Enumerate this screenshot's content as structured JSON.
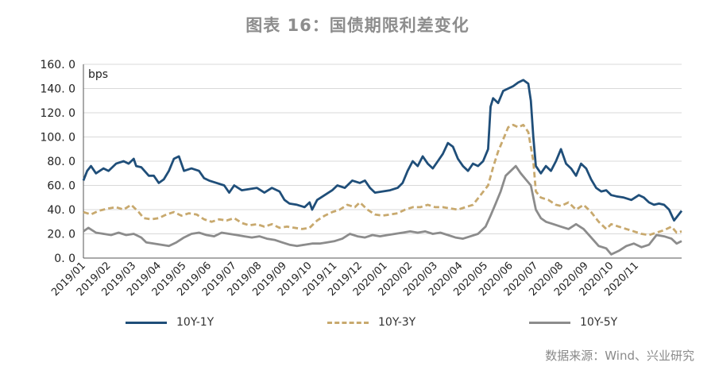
{
  "title": "图表 16：国债期限利差变化",
  "source": "数据来源：Wind、兴业研究",
  "colors": {
    "s1": "#1f4e79",
    "s2": "#c8a96e",
    "s3": "#8c8c8c"
  },
  "chart_data": {
    "type": "line",
    "unit_label": "bps",
    "ylim": [
      0,
      160
    ],
    "yticks": [
      "160. 0",
      "140. 0",
      "120. 0",
      "100. 0",
      "80. 0",
      "60. 0",
      "40. 0",
      "20. 0",
      "0. 0"
    ],
    "xtick_labels": [
      "2019/01",
      "2019/02",
      "2019/03",
      "2019/04",
      "2019/05",
      "2019/06",
      "2019/07",
      "2019/08",
      "2019/09",
      "2019/10",
      "2019/11",
      "2019/12",
      "2020/01",
      "2020/02",
      "2020/03",
      "2020/04",
      "2020/05",
      "2020/06",
      "2020/07",
      "2020/08",
      "2020/09",
      "2020/10",
      "2020/11"
    ],
    "x_end_month": 23.8,
    "grid": true,
    "legend": "bottom",
    "series": [
      {
        "name": "10Y-1Y",
        "style": "solid",
        "points": [
          [
            0,
            64
          ],
          [
            0.15,
            72
          ],
          [
            0.3,
            76
          ],
          [
            0.5,
            70
          ],
          [
            0.8,
            74
          ],
          [
            1,
            72
          ],
          [
            1.3,
            78
          ],
          [
            1.6,
            80
          ],
          [
            1.8,
            78
          ],
          [
            2,
            82
          ],
          [
            2.1,
            76
          ],
          [
            2.3,
            75
          ],
          [
            2.6,
            68
          ],
          [
            2.8,
            68
          ],
          [
            3,
            62
          ],
          [
            3.2,
            65
          ],
          [
            3.4,
            72
          ],
          [
            3.6,
            82
          ],
          [
            3.8,
            84
          ],
          [
            4,
            72
          ],
          [
            4.3,
            74
          ],
          [
            4.6,
            72
          ],
          [
            4.8,
            66
          ],
          [
            5,
            64
          ],
          [
            5.3,
            62
          ],
          [
            5.6,
            60
          ],
          [
            5.8,
            54
          ],
          [
            6,
            60
          ],
          [
            6.3,
            56
          ],
          [
            6.6,
            57
          ],
          [
            6.9,
            58
          ],
          [
            7.2,
            54
          ],
          [
            7.5,
            58
          ],
          [
            7.8,
            55
          ],
          [
            8,
            48
          ],
          [
            8.2,
            45
          ],
          [
            8.5,
            44
          ],
          [
            8.8,
            42
          ],
          [
            9,
            46
          ],
          [
            9.1,
            40
          ],
          [
            9.3,
            48
          ],
          [
            9.6,
            52
          ],
          [
            9.9,
            56
          ],
          [
            10.1,
            60
          ],
          [
            10.4,
            58
          ],
          [
            10.7,
            64
          ],
          [
            11,
            62
          ],
          [
            11.2,
            64
          ],
          [
            11.4,
            58
          ],
          [
            11.6,
            54
          ],
          [
            11.9,
            55
          ],
          [
            12.2,
            56
          ],
          [
            12.5,
            58
          ],
          [
            12.7,
            62
          ],
          [
            12.9,
            72
          ],
          [
            13.1,
            80
          ],
          [
            13.3,
            76
          ],
          [
            13.5,
            84
          ],
          [
            13.7,
            78
          ],
          [
            13.9,
            74
          ],
          [
            14.1,
            80
          ],
          [
            14.3,
            86
          ],
          [
            14.5,
            95
          ],
          [
            14.7,
            92
          ],
          [
            14.9,
            82
          ],
          [
            15.1,
            76
          ],
          [
            15.3,
            72
          ],
          [
            15.5,
            78
          ],
          [
            15.7,
            76
          ],
          [
            15.9,
            80
          ],
          [
            16.1,
            90
          ],
          [
            16.2,
            125
          ],
          [
            16.3,
            132
          ],
          [
            16.5,
            128
          ],
          [
            16.7,
            138
          ],
          [
            16.9,
            140
          ],
          [
            17.1,
            142
          ],
          [
            17.3,
            145
          ],
          [
            17.5,
            147
          ],
          [
            17.7,
            144
          ],
          [
            17.8,
            130
          ],
          [
            17.9,
            100
          ],
          [
            18,
            76
          ],
          [
            18.2,
            70
          ],
          [
            18.4,
            76
          ],
          [
            18.6,
            72
          ],
          [
            18.8,
            80
          ],
          [
            19,
            90
          ],
          [
            19.2,
            78
          ],
          [
            19.4,
            74
          ],
          [
            19.6,
            68
          ],
          [
            19.8,
            78
          ],
          [
            20,
            74
          ],
          [
            20.2,
            65
          ],
          [
            20.4,
            58
          ],
          [
            20.6,
            55
          ],
          [
            20.8,
            56
          ],
          [
            21,
            52
          ],
          [
            21.2,
            51
          ],
          [
            21.5,
            50
          ],
          [
            21.8,
            48
          ],
          [
            22.1,
            52
          ],
          [
            22.3,
            50
          ],
          [
            22.5,
            46
          ],
          [
            22.7,
            44
          ],
          [
            22.9,
            45
          ],
          [
            23.1,
            44
          ],
          [
            23.3,
            40
          ],
          [
            23.5,
            31
          ],
          [
            23.8,
            39
          ]
        ]
      },
      {
        "name": "10Y-3Y",
        "style": "dashed",
        "points": [
          [
            0,
            38
          ],
          [
            0.3,
            36
          ],
          [
            0.6,
            39
          ],
          [
            1,
            41
          ],
          [
            1.3,
            42
          ],
          [
            1.6,
            40
          ],
          [
            1.9,
            44
          ],
          [
            2.2,
            38
          ],
          [
            2.4,
            33
          ],
          [
            2.7,
            32
          ],
          [
            3,
            33
          ],
          [
            3.3,
            36
          ],
          [
            3.6,
            38
          ],
          [
            3.9,
            35
          ],
          [
            4.2,
            37
          ],
          [
            4.5,
            36
          ],
          [
            4.8,
            32
          ],
          [
            5.1,
            30
          ],
          [
            5.4,
            32
          ],
          [
            5.7,
            31
          ],
          [
            6,
            33
          ],
          [
            6.3,
            29
          ],
          [
            6.6,
            27
          ],
          [
            6.9,
            28
          ],
          [
            7.2,
            26
          ],
          [
            7.5,
            28
          ],
          [
            7.8,
            25
          ],
          [
            8.1,
            26
          ],
          [
            8.4,
            25
          ],
          [
            8.7,
            24
          ],
          [
            9,
            25
          ],
          [
            9.3,
            31
          ],
          [
            9.6,
            35
          ],
          [
            9.9,
            38
          ],
          [
            10.2,
            40
          ],
          [
            10.5,
            44
          ],
          [
            10.8,
            42
          ],
          [
            11,
            46
          ],
          [
            11.3,
            40
          ],
          [
            11.6,
            36
          ],
          [
            11.9,
            35
          ],
          [
            12.2,
            36
          ],
          [
            12.5,
            37
          ],
          [
            12.8,
            40
          ],
          [
            13.1,
            42
          ],
          [
            13.4,
            42
          ],
          [
            13.7,
            44
          ],
          [
            14,
            42
          ],
          [
            14.3,
            42
          ],
          [
            14.6,
            41
          ],
          [
            14.9,
            40
          ],
          [
            15.2,
            42
          ],
          [
            15.5,
            44
          ],
          [
            15.8,
            52
          ],
          [
            16.1,
            60
          ],
          [
            16.3,
            75
          ],
          [
            16.5,
            88
          ],
          [
            16.7,
            98
          ],
          [
            16.9,
            108
          ],
          [
            17.1,
            110
          ],
          [
            17.3,
            108
          ],
          [
            17.5,
            110
          ],
          [
            17.7,
            104
          ],
          [
            17.9,
            80
          ],
          [
            18,
            55
          ],
          [
            18.2,
            50
          ],
          [
            18.5,
            48
          ],
          [
            18.8,
            44
          ],
          [
            19,
            43
          ],
          [
            19.3,
            46
          ],
          [
            19.6,
            40
          ],
          [
            19.9,
            44
          ],
          [
            20.2,
            38
          ],
          [
            20.5,
            30
          ],
          [
            20.8,
            24
          ],
          [
            21,
            28
          ],
          [
            21.3,
            26
          ],
          [
            21.6,
            24
          ],
          [
            21.9,
            22
          ],
          [
            22.2,
            20
          ],
          [
            22.5,
            19
          ],
          [
            22.8,
            21
          ],
          [
            23.1,
            23
          ],
          [
            23.4,
            26
          ],
          [
            23.6,
            21
          ],
          [
            23.8,
            22
          ]
        ]
      },
      {
        "name": "10Y-5Y",
        "style": "solid",
        "points": [
          [
            0,
            22
          ],
          [
            0.2,
            25
          ],
          [
            0.5,
            21
          ],
          [
            0.8,
            20
          ],
          [
            1.1,
            19
          ],
          [
            1.4,
            21
          ],
          [
            1.7,
            19
          ],
          [
            2,
            20
          ],
          [
            2.3,
            17
          ],
          [
            2.5,
            13
          ],
          [
            2.8,
            12
          ],
          [
            3.1,
            11
          ],
          [
            3.4,
            10
          ],
          [
            3.7,
            13
          ],
          [
            4,
            17
          ],
          [
            4.3,
            20
          ],
          [
            4.6,
            21
          ],
          [
            4.9,
            19
          ],
          [
            5.2,
            18
          ],
          [
            5.5,
            21
          ],
          [
            5.8,
            20
          ],
          [
            6.1,
            19
          ],
          [
            6.4,
            18
          ],
          [
            6.7,
            17
          ],
          [
            7,
            18
          ],
          [
            7.3,
            16
          ],
          [
            7.6,
            15
          ],
          [
            7.9,
            13
          ],
          [
            8.2,
            11
          ],
          [
            8.5,
            10
          ],
          [
            8.8,
            11
          ],
          [
            9.1,
            12
          ],
          [
            9.4,
            12
          ],
          [
            9.7,
            13
          ],
          [
            10,
            14
          ],
          [
            10.3,
            16
          ],
          [
            10.6,
            20
          ],
          [
            10.9,
            18
          ],
          [
            11.2,
            17
          ],
          [
            11.5,
            19
          ],
          [
            11.8,
            18
          ],
          [
            12.1,
            19
          ],
          [
            12.4,
            20
          ],
          [
            12.7,
            21
          ],
          [
            13,
            22
          ],
          [
            13.3,
            21
          ],
          [
            13.6,
            22
          ],
          [
            13.9,
            20
          ],
          [
            14.2,
            21
          ],
          [
            14.5,
            19
          ],
          [
            14.8,
            17
          ],
          [
            15.1,
            16
          ],
          [
            15.4,
            18
          ],
          [
            15.7,
            20
          ],
          [
            16,
            26
          ],
          [
            16.2,
            35
          ],
          [
            16.4,
            45
          ],
          [
            16.6,
            55
          ],
          [
            16.8,
            68
          ],
          [
            17,
            72
          ],
          [
            17.2,
            76
          ],
          [
            17.4,
            70
          ],
          [
            17.6,
            65
          ],
          [
            17.8,
            60
          ],
          [
            18,
            40
          ],
          [
            18.2,
            33
          ],
          [
            18.4,
            30
          ],
          [
            18.7,
            28
          ],
          [
            19,
            26
          ],
          [
            19.3,
            24
          ],
          [
            19.6,
            28
          ],
          [
            19.9,
            24
          ],
          [
            20.2,
            17
          ],
          [
            20.5,
            10
          ],
          [
            20.8,
            8
          ],
          [
            21,
            3
          ],
          [
            21.3,
            6
          ],
          [
            21.6,
            10
          ],
          [
            21.9,
            12
          ],
          [
            22.2,
            9
          ],
          [
            22.5,
            11
          ],
          [
            22.8,
            19
          ],
          [
            23.1,
            18
          ],
          [
            23.4,
            16
          ],
          [
            23.6,
            12
          ],
          [
            23.8,
            14
          ]
        ]
      }
    ]
  }
}
